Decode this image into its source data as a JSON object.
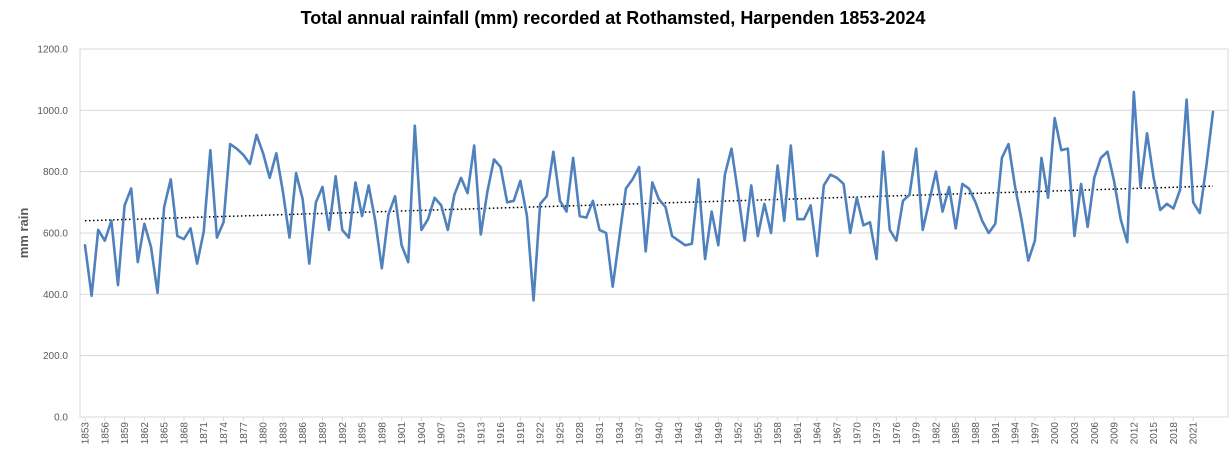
{
  "chart_data": {
    "type": "line",
    "title": "Total annual rainfall (mm) recorded at Rothamsted, Harpenden 1853-2024",
    "ylabel": "mm rain",
    "xlabel": "",
    "ylim": [
      0,
      1200
    ],
    "y_ticks": [
      "0.0",
      "200.0",
      "400.0",
      "600.0",
      "800.0",
      "1000.0",
      "1200.0"
    ],
    "x_start": 1853,
    "x_end": 2024,
    "x_tick_labels": [
      "1853",
      "1856",
      "1859",
      "1862",
      "1865",
      "1868",
      "1871",
      "1874",
      "1877",
      "1880",
      "1883",
      "1886",
      "1889",
      "1892",
      "1895",
      "1898",
      "1901",
      "1904",
      "1907",
      "1910",
      "1913",
      "1916",
      "1919",
      "1922",
      "1925",
      "1928",
      "1931",
      "1934",
      "1937",
      "1940",
      "1943",
      "1946",
      "1949",
      "1952",
      "1955",
      "1958",
      "1961",
      "1964",
      "1967",
      "1970",
      "1973",
      "1976",
      "1979",
      "1982",
      "1985",
      "1988",
      "1991",
      "1994",
      "1997",
      "2000",
      "2003",
      "2006",
      "2009",
      "2012",
      "2015",
      "2018",
      "2021"
    ],
    "grid": "horizontal",
    "line_color": "#4f81bd",
    "trend_color": "#000000",
    "trend": {
      "start_value": 640,
      "end_value": 753,
      "style": "dotted"
    },
    "series": [
      {
        "values": [
          560,
          395,
          610,
          575,
          640,
          430,
          690,
          745,
          505,
          630,
          555,
          405,
          685,
          775,
          590,
          580,
          615,
          500,
          605,
          870,
          585,
          635,
          890,
          875,
          855,
          825,
          920,
          860,
          780,
          860,
          735,
          585,
          795,
          710,
          500,
          700,
          750,
          610,
          785,
          610,
          585,
          765,
          655,
          755,
          640,
          485,
          660,
          720,
          560,
          505,
          950,
          610,
          645,
          715,
          690,
          610,
          725,
          780,
          730,
          885,
          595,
          735,
          840,
          815,
          700,
          705,
          770,
          655,
          380,
          695,
          720,
          865,
          705,
          670,
          845,
          655,
          650,
          705,
          610,
          600,
          425,
          585,
          745,
          775,
          815,
          540,
          765,
          710,
          685,
          590,
          575,
          560,
          565,
          775,
          515,
          670,
          560,
          790,
          875,
          730,
          575,
          755,
          590,
          695,
          600,
          820,
          640,
          885,
          645,
          645,
          690,
          525,
          755,
          790,
          780,
          760,
          600,
          715,
          625,
          635,
          515,
          865,
          610,
          575,
          705,
          725,
          875,
          610,
          705,
          800,
          670,
          750,
          615,
          760,
          745,
          700,
          640,
          600,
          630,
          845,
          890,
          750,
          640,
          510,
          575,
          845,
          715,
          975,
          870,
          875,
          590,
          760,
          620,
          780,
          845,
          865,
          770,
          645,
          570,
          1060,
          750,
          925,
          780,
          675,
          695,
          680,
          740,
          1035,
          700,
          665,
          820,
          995
        ]
      }
    ]
  }
}
